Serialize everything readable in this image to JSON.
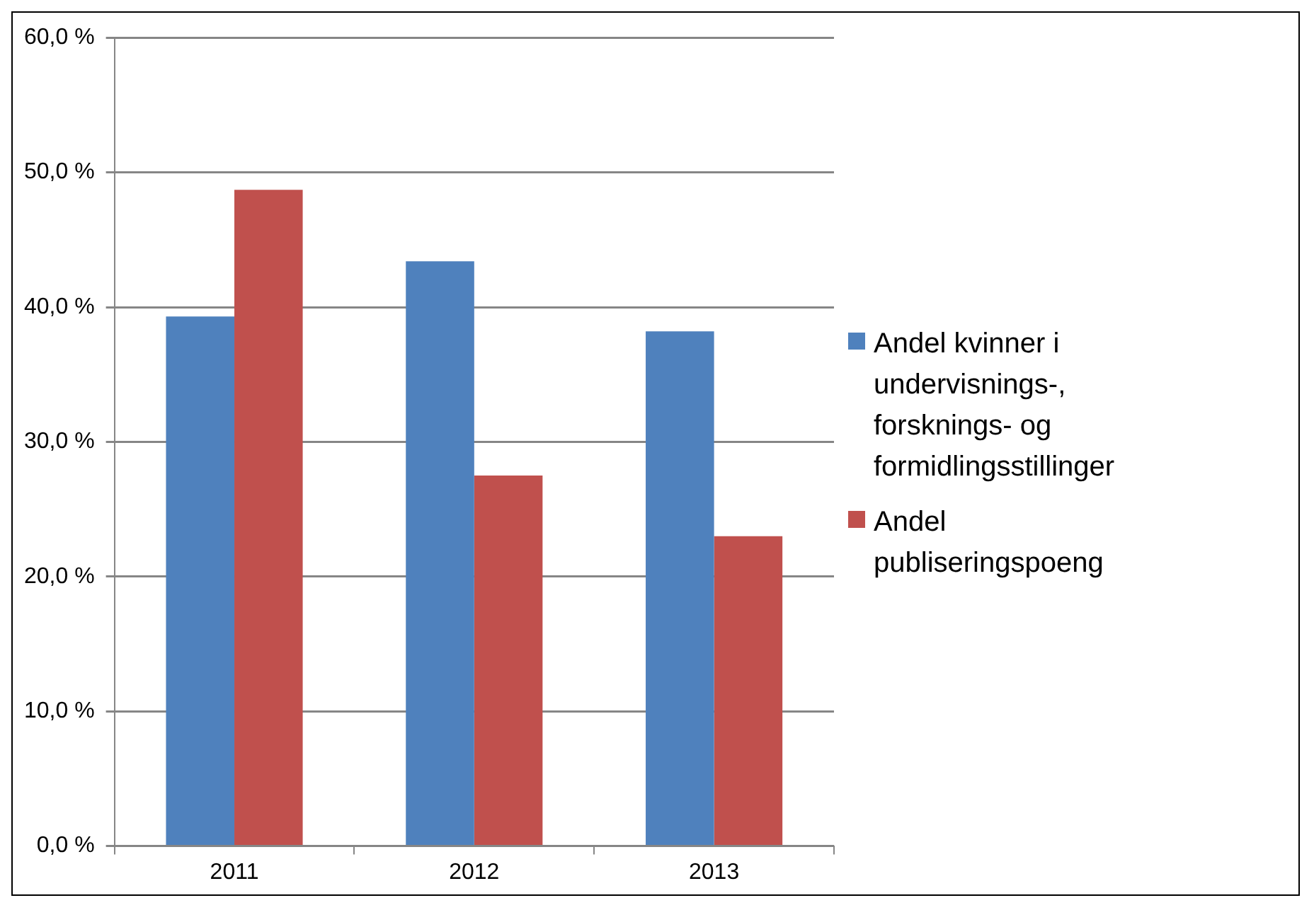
{
  "chart_data": {
    "type": "bar",
    "categories": [
      "2011",
      "2012",
      "2013"
    ],
    "series": [
      {
        "name": "Andel kvinner i undervisnings-, forsknings- og formidlingsstillinger",
        "color": "#4f81bd",
        "values": [
          39.3,
          43.4,
          38.2
        ]
      },
      {
        "name": "Andel publiseringspoeng",
        "color": "#c0504d",
        "values": [
          48.7,
          27.5,
          23.0
        ]
      }
    ],
    "ylim": [
      0,
      60
    ],
    "yticks": [
      {
        "value": 0,
        "label": "0,0 %"
      },
      {
        "value": 10,
        "label": "10,0 %"
      },
      {
        "value": 20,
        "label": "20,0 %"
      },
      {
        "value": 30,
        "label": "30,0 %"
      },
      {
        "value": 40,
        "label": "40,0 %"
      },
      {
        "value": 50,
        "label": "50,0 %"
      },
      {
        "value": 60,
        "label": "60,0 %"
      }
    ],
    "grid": "y",
    "legend": "right"
  }
}
